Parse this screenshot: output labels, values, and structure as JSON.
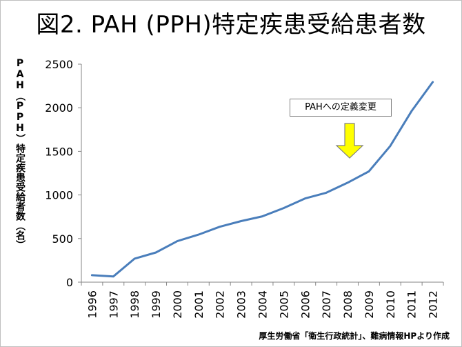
{
  "title": "図2. PAH (PPH)特定疾患受給患者数",
  "source": "厚生労働省「衛生行政統計」、難病情報HPより作成",
  "chart_data": {
    "type": "line",
    "title": "図2. PAH (PPH)特定疾患受給患者数",
    "xlabel": "",
    "ylabel": "PAH（PPH）特定疾患受給者数（名）",
    "x": [
      "1996",
      "1997",
      "1998",
      "1999",
      "2000",
      "2001",
      "2002",
      "2003",
      "2004",
      "2005",
      "2006",
      "2007",
      "2008",
      "2009",
      "2010",
      "2011",
      "2012"
    ],
    "series": [
      {
        "name": "特定疾患受給患者数",
        "values": [
          80,
          65,
          270,
          340,
          470,
          545,
          635,
          700,
          755,
          850,
          960,
          1025,
          1140,
          1270,
          1560,
          1960,
          2295
        ]
      }
    ],
    "ylim": [
      0,
      2500
    ],
    "yticks": [
      0,
      500,
      1000,
      1500,
      2000,
      2500
    ],
    "grid": false,
    "legend": "none",
    "annotation": {
      "text": "PAHへの定義変更",
      "target": "2008"
    },
    "colors": {
      "line": "#4a7ebb",
      "arrow_fill": "#ffff00",
      "arrow_stroke": "#7f7f7f",
      "axis": "#868686"
    }
  }
}
